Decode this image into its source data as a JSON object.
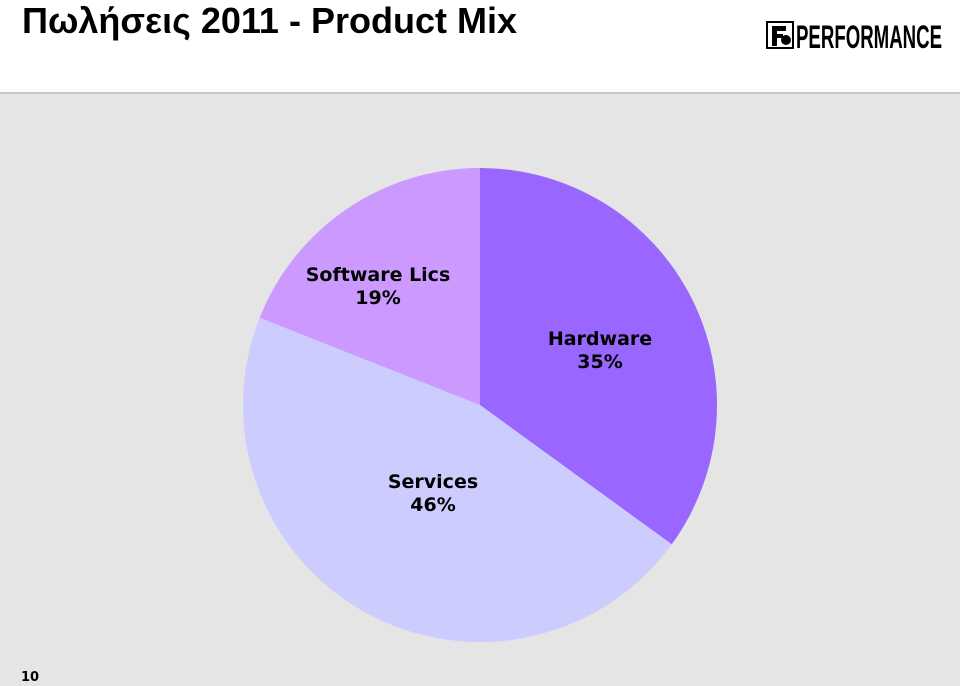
{
  "header": {
    "title": "Πωλήσεις 2011 - Product Mix",
    "logo_text": "PERFORMANCE"
  },
  "page_number": "10",
  "chart_data": {
    "type": "pie",
    "title": "",
    "start": "12 o'clock",
    "direction": "clockwise",
    "slices": [
      {
        "name": "Hardware",
        "value": 35,
        "label": "35%",
        "color": "#9966ff"
      },
      {
        "name": "Services",
        "value": 46,
        "label": "46%",
        "color": "#ccccff"
      },
      {
        "name": "Software Lics",
        "value": 19,
        "label": "19%",
        "color": "#cc99ff"
      }
    ],
    "background": "#e5e5e5"
  }
}
